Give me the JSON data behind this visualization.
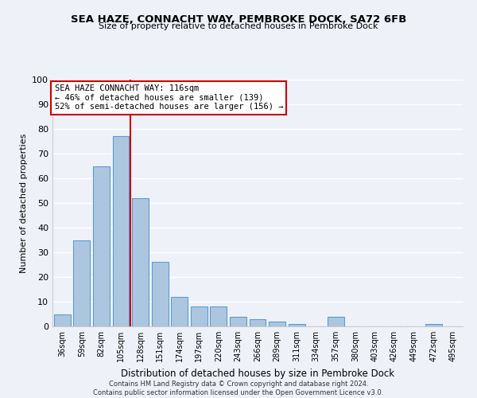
{
  "title": "SEA HAZE, CONNACHT WAY, PEMBROKE DOCK, SA72 6FB",
  "subtitle": "Size of property relative to detached houses in Pembroke Dock",
  "xlabel": "Distribution of detached houses by size in Pembroke Dock",
  "ylabel": "Number of detached properties",
  "footer_line1": "Contains HM Land Registry data © Crown copyright and database right 2024.",
  "footer_line2": "Contains public sector information licensed under the Open Government Licence v3.0.",
  "bar_labels": [
    "36sqm",
    "59sqm",
    "82sqm",
    "105sqm",
    "128sqm",
    "151sqm",
    "174sqm",
    "197sqm",
    "220sqm",
    "243sqm",
    "266sqm",
    "289sqm",
    "311sqm",
    "334sqm",
    "357sqm",
    "380sqm",
    "403sqm",
    "426sqm",
    "449sqm",
    "472sqm",
    "495sqm"
  ],
  "bar_values": [
    5,
    35,
    65,
    77,
    52,
    26,
    12,
    8,
    8,
    4,
    3,
    2,
    1,
    0,
    4,
    0,
    0,
    0,
    0,
    1,
    0
  ],
  "bar_color": "#adc6e0",
  "bar_edge_color": "#5b9bd5",
  "vline_color": "#cc0000",
  "annotation_title": "SEA HAZE CONNACHT WAY: 116sqm",
  "annotation_line1": "← 46% of detached houses are smaller (139)",
  "annotation_line2": "52% of semi-detached houses are larger (156) →",
  "annotation_box_color": "#ffffff",
  "annotation_box_edge": "#cc0000",
  "ylim": [
    0,
    100
  ],
  "yticks": [
    0,
    10,
    20,
    30,
    40,
    50,
    60,
    70,
    80,
    90,
    100
  ],
  "bg_color": "#eef2f8",
  "grid_color": "#ffffff"
}
